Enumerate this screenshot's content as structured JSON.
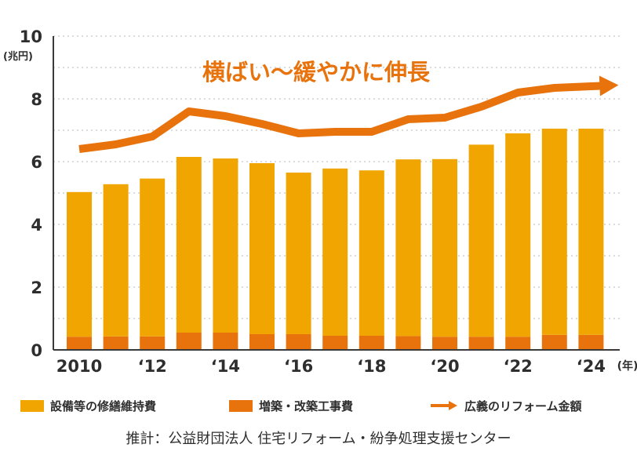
{
  "chart_data": {
    "type": "bar",
    "ylabel": "(兆円)",
    "xunit": "(年)",
    "ylim": [
      0,
      10
    ],
    "yticks": [
      0,
      2,
      4,
      6,
      8,
      10
    ],
    "grid": true,
    "stacked": true,
    "categories": [
      "2010",
      "2011",
      "2012",
      "2013",
      "2014",
      "2015",
      "2016",
      "2017",
      "2018",
      "2019",
      "2020",
      "2021",
      "2022",
      "2023",
      "2024"
    ],
    "xtick_labels": [
      "2010",
      "",
      "‘12",
      "",
      "‘14",
      "",
      "‘16",
      "",
      "‘18",
      "",
      "‘20",
      "",
      "‘22",
      "",
      "‘24"
    ],
    "series": [
      {
        "name": "増築・改築工事費",
        "color": "#e8730c",
        "values": [
          0.42,
          0.43,
          0.43,
          0.55,
          0.55,
          0.5,
          0.5,
          0.45,
          0.45,
          0.44,
          0.42,
          0.42,
          0.42,
          0.48,
          0.48
        ]
      },
      {
        "name": "設備等の修繕維持費",
        "color": "#f0a500",
        "values": [
          4.61,
          4.85,
          5.03,
          5.6,
          5.55,
          5.45,
          5.15,
          5.33,
          5.27,
          5.63,
          5.66,
          6.12,
          6.48,
          6.57,
          6.57
        ]
      },
      {
        "name": "広義のリフォーム金額",
        "type": "line",
        "color": "#e8730c",
        "values": [
          6.4,
          6.55,
          6.8,
          7.6,
          7.45,
          7.2,
          6.9,
          6.95,
          6.95,
          7.35,
          7.4,
          7.75,
          8.2,
          8.35,
          8.4
        ]
      }
    ],
    "annotation": "横ばい〜緩やかに伸長"
  },
  "source": "推計：公益財団法人 住宅リフォーム・紛争処理支援センター"
}
